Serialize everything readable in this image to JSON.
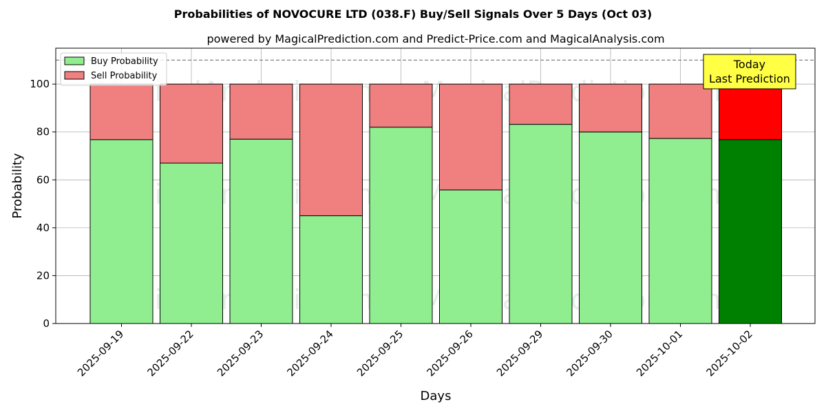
{
  "chart_data": {
    "type": "bar",
    "stacked": true,
    "title": "Probabilities of NOVOCURE LTD (038.F) Buy/Sell Signals Over 5 Days (Oct 03)",
    "subtitle": "powered by MagicalPrediction.com and Predict-Price.com and MagicalAnalysis.com",
    "xlabel": "Days",
    "ylabel": "Probability",
    "ylim": [
      0,
      115
    ],
    "yticks": [
      "0",
      "20",
      "40",
      "60",
      "80",
      "100"
    ],
    "reference_line": 110,
    "grid": true,
    "legend_position": "top-left",
    "categories": [
      "2025-09-19",
      "2025-09-22",
      "2025-09-23",
      "2025-09-24",
      "2025-09-25",
      "2025-09-26",
      "2025-09-29",
      "2025-09-30",
      "2025-10-01",
      "2025-10-02"
    ],
    "series": [
      {
        "name": "Buy Probability",
        "color": "#90ee90",
        "highlight_color": "#008000",
        "values": [
          76.8,
          67.0,
          77.0,
          45.0,
          82.0,
          55.8,
          83.2,
          80.0,
          77.3,
          76.8
        ]
      },
      {
        "name": "Sell Probability",
        "color": "#f08080",
        "highlight_color": "#ff0000",
        "values": [
          23.2,
          33.0,
          23.0,
          55.0,
          18.0,
          44.2,
          16.8,
          20.0,
          22.7,
          23.2
        ]
      }
    ],
    "annotation": {
      "line1": "Today",
      "line2": "Last Prediction",
      "color": "#ffff44",
      "target": "2025-10-02"
    },
    "watermarks": [
      "MagicalAnalysis.com",
      "MagicalPrediction.com"
    ]
  }
}
